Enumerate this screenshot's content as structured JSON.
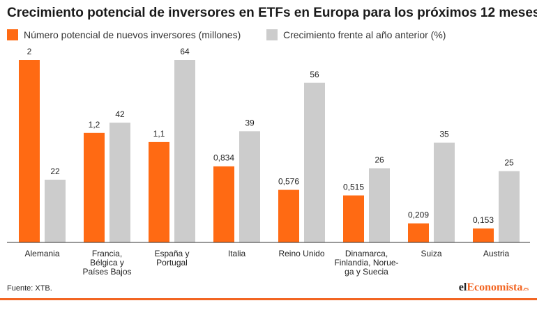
{
  "chart_data": {
    "type": "bar",
    "title": "Crecimiento potencial de inversores en ETFs en Europa para los próximos 12 meses",
    "categories": [
      [
        "Alemania"
      ],
      [
        "Francia,",
        "Bélgica y",
        "Países Bajos"
      ],
      [
        "España y",
        "Portugal"
      ],
      [
        "Italia"
      ],
      [
        "Reino Unido"
      ],
      [
        "Dinamarca,",
        "Finlandia, Norue-",
        "ga y Suecia"
      ],
      [
        "Suiza"
      ],
      [
        "Austria"
      ]
    ],
    "series": [
      {
        "name": "Número potencial de nuevos inversores (millones)",
        "color": "#ff6a13",
        "values": [
          2,
          1.2,
          1.1,
          0.834,
          0.576,
          0.515,
          0.209,
          0.153
        ],
        "labels": [
          "2",
          "1,2",
          "1,1",
          "0,834",
          "0,576",
          "0,515",
          "0,209",
          "0,153"
        ],
        "ymax": 2
      },
      {
        "name": "Crecimiento frente al año anterior (%)",
        "color": "#cccccc",
        "values": [
          22,
          42,
          64,
          39,
          56,
          26,
          35,
          25
        ],
        "labels": [
          "22",
          "42",
          "64",
          "39",
          "56",
          "26",
          "35",
          "25"
        ],
        "ymax": 64
      }
    ],
    "grid": false,
    "legend_position": "top-left"
  },
  "source": "Fuente: XTB.",
  "brand": {
    "part1": "el",
    "part2": "Economista",
    "suffix": ".es"
  }
}
